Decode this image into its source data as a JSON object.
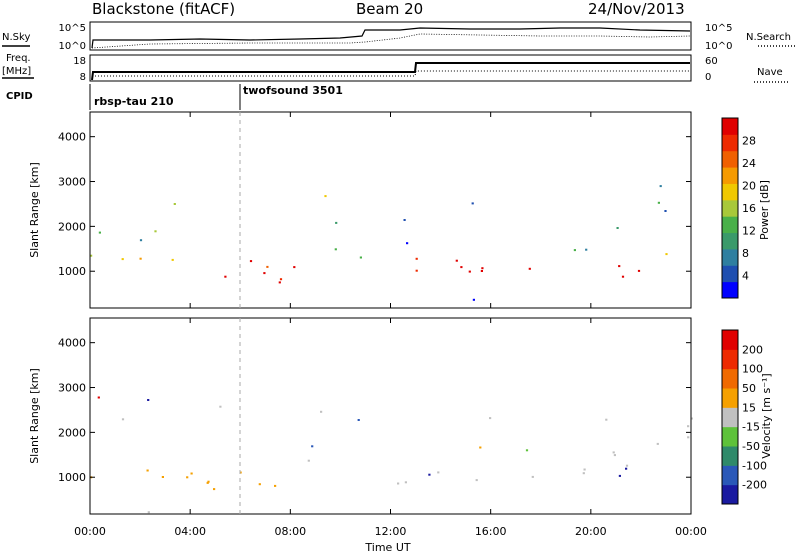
{
  "header": {
    "station": "Blackstone (fitACF)",
    "beam": "Beam 20",
    "date": "24/Nov/2013"
  },
  "side_labels": {
    "nsky": "N.Sky",
    "nsearch": "N.Search",
    "freq_line1": "Freq.",
    "freq_line2": "[MHz]",
    "nave": "Nave",
    "cpid": "CPID"
  },
  "noise_panel": {
    "ticks_left": [
      "10^5",
      "10^0"
    ],
    "ticks_right": [
      "10^5",
      "10^0"
    ]
  },
  "freq_panel": {
    "ticks_left": [
      "18",
      "8"
    ],
    "ticks_right": [
      "60",
      "0"
    ]
  },
  "cpid_segments": [
    {
      "label": "rbsp-tau 210",
      "start_hour": 0
    },
    {
      "label": "twofsound 3501",
      "start_hour": 6
    }
  ],
  "chart_data": [
    {
      "type": "heatmap",
      "name": "power",
      "ylabel": "Slant Range [km]",
      "y_ticks": [
        1000,
        2000,
        3000,
        4000
      ],
      "ylim": [
        180,
        4550
      ],
      "colorbar_label": "Power [dB]",
      "colorbar_ticks": [
        "4",
        "8",
        "12",
        "16",
        "20",
        "24",
        "28"
      ],
      "colorbar_colors": [
        "#0000ff",
        "#1f4fb0",
        "#2f7fa0",
        "#3a9a6a",
        "#49b049",
        "#a8c83a",
        "#f0c800",
        "#f59a00",
        "#f06000",
        "#ee2a00",
        "#e00000"
      ]
    },
    {
      "type": "heatmap",
      "name": "velocity",
      "ylabel": "Slant Range [km]",
      "y_ticks": [
        1000,
        2000,
        3000,
        4000
      ],
      "ylim": [
        180,
        4550
      ],
      "colorbar_label": "Velocity [m s⁻¹]",
      "colorbar_ticks": [
        "200",
        "100",
        "50",
        "15",
        "-15",
        "-50",
        "-100",
        "-200"
      ],
      "colorbar_colors": [
        "#1a1aa0",
        "#2a58b8",
        "#2f8a6a",
        "#5ec23a",
        "#c0c0c0",
        "#f5a000",
        "#f06a00",
        "#ee2a00",
        "#e00000"
      ]
    }
  ],
  "time_axis": {
    "xlabel": "Time UT",
    "ticks": [
      "00:00",
      "04:00",
      "08:00",
      "12:00",
      "16:00",
      "20:00",
      "00:00"
    ]
  }
}
